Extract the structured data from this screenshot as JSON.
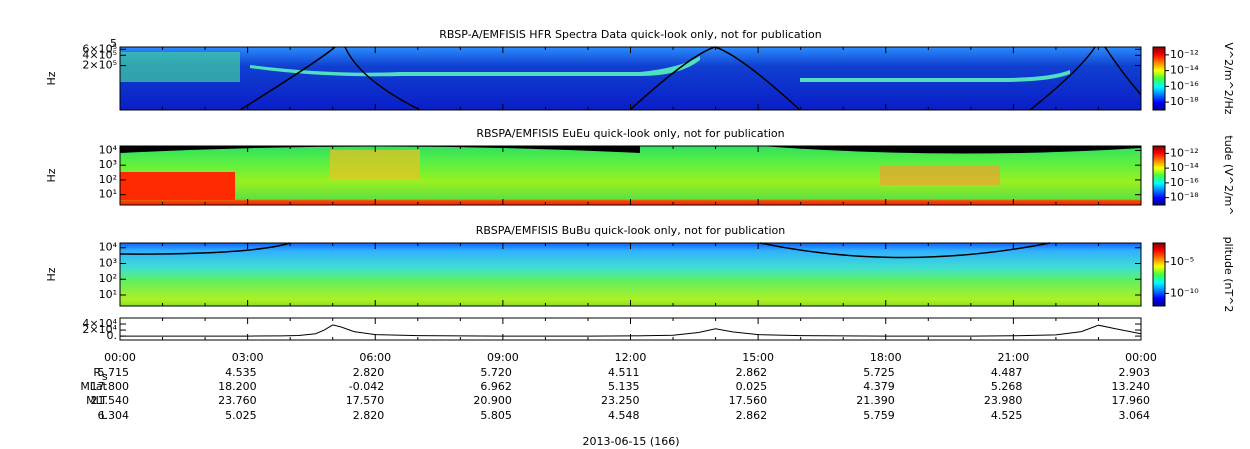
{
  "chart_data": [
    {
      "type": "spectrogram",
      "title": "RBSP-A/EMFISIS  HFR Spectra Data quick-look only, not for publication",
      "ylabel": "Hz",
      "log_y": true,
      "ylim": [
        10000,
        700000
      ],
      "yticks": [
        {
          "value": 200000,
          "label": "2×10⁵"
        },
        {
          "value": 400000,
          "label": "4×10⁵"
        },
        {
          "value": 600000,
          "label": "6×10⁵"
        }
      ],
      "annotation": "5",
      "colorbar": {
        "label": "V^2/m^2/Hz",
        "log": true,
        "lim": [
          1e-19,
          1e-11
        ],
        "ticks": [
          {
            "value": 1e-12,
            "label": "10⁻¹²"
          },
          {
            "value": 1e-14,
            "label": "10⁻¹⁴"
          },
          {
            "value": 1e-16,
            "label": "10⁻¹⁶"
          },
          {
            "value": 1e-18,
            "label": "10⁻¹⁸"
          }
        ]
      }
    },
    {
      "type": "spectrogram",
      "title": "RBSPA/EMFISIS  EuEu quick-look only, not for publication",
      "ylabel": "Hz",
      "log_y": true,
      "ylim": [
        2,
        20000
      ],
      "yticks": [
        {
          "value": 10,
          "label": "10¹"
        },
        {
          "value": 100,
          "label": "10²"
        },
        {
          "value": 1000,
          "label": "10³"
        },
        {
          "value": 10000,
          "label": "10⁴"
        }
      ],
      "colorbar": {
        "label": "tude (V^2/m^",
        "log": true,
        "lim": [
          1e-19,
          1e-11
        ],
        "ticks": [
          {
            "value": 1e-12,
            "label": "10⁻¹²"
          },
          {
            "value": 1e-14,
            "label": "10⁻¹⁴"
          },
          {
            "value": 1e-16,
            "label": "10⁻¹⁶"
          },
          {
            "value": 1e-18,
            "label": "10⁻¹⁸"
          }
        ]
      }
    },
    {
      "type": "spectrogram",
      "title": "RBSPA/EMFISIS  BuBu quick-look only, not for publication",
      "ylabel": "Hz",
      "log_y": true,
      "ylim": [
        2,
        20000
      ],
      "yticks": [
        {
          "value": 10,
          "label": "10¹"
        },
        {
          "value": 100,
          "label": "10²"
        },
        {
          "value": 1000,
          "label": "10³"
        },
        {
          "value": 10000,
          "label": "10⁴"
        }
      ],
      "colorbar": {
        "label": "plitude (nT^2",
        "log": true,
        "lim": [
          1e-12,
          0.01
        ],
        "ticks": [
          {
            "value": 1e-05,
            "label": "10⁻⁵"
          },
          {
            "value": 1e-10,
            "label": "10⁻¹⁰"
          }
        ]
      }
    },
    {
      "type": "line",
      "color": "#000000",
      "ylim": [
        -13000,
        60000
      ],
      "yticks": [
        {
          "value": 0,
          "label": "0."
        },
        {
          "value": 20000,
          "label": "2×10⁴"
        },
        {
          "value": 40000,
          "label": "4×10⁴"
        }
      ],
      "x": [
        0,
        1,
        2,
        3,
        3.8,
        4.2,
        4.6,
        4.8,
        5.0,
        5.2,
        5.5,
        6,
        7,
        8,
        9,
        11,
        12,
        13,
        13.6,
        14.0,
        14.4,
        15,
        16,
        17,
        18,
        20,
        21,
        22,
        22.6,
        23.0,
        23.4,
        24
      ],
      "values": [
        0,
        0,
        0,
        0,
        500,
        2000,
        8000,
        20000,
        37000,
        30000,
        15000,
        5000,
        1500,
        500,
        0,
        0,
        500,
        3000,
        12000,
        24000,
        14000,
        5000,
        1500,
        500,
        0,
        0,
        1000,
        4000,
        15000,
        36000,
        24000,
        8000
      ]
    }
  ],
  "time_axis": {
    "xlim": [
      0,
      24
    ],
    "xticks": [
      {
        "value": 0,
        "label": "00:00"
      },
      {
        "value": 3,
        "label": "03:00"
      },
      {
        "value": 6,
        "label": "06:00"
      },
      {
        "value": 9,
        "label": "09:00"
      },
      {
        "value": 12,
        "label": "12:00"
      },
      {
        "value": 15,
        "label": "15:00"
      },
      {
        "value": 18,
        "label": "18:00"
      },
      {
        "value": 21,
        "label": "21:00"
      },
      {
        "value": 24,
        "label": "00:00"
      }
    ],
    "date": "2013-06-15 (166)"
  },
  "ephemeris": [
    {
      "label": "R",
      "subscript": "s",
      "values": [
        "5.715",
        "4.535",
        "2.820",
        "5.720",
        "4.511",
        "2.862",
        "5.725",
        "4.487",
        "2.903"
      ]
    },
    {
      "label": "MLat",
      "values": [
        "17.800",
        "18.200",
        "-0.042",
        "6.962",
        "5.135",
        "0.025",
        "4.379",
        "5.268",
        "13.240"
      ]
    },
    {
      "label": "MLT",
      "values": [
        "21.540",
        "23.760",
        "17.570",
        "20.900",
        "23.250",
        "17.560",
        "21.390",
        "23.980",
        "17.960"
      ]
    },
    {
      "label": "L",
      "values": [
        "6.304",
        "5.025",
        "2.820",
        "5.805",
        "4.548",
        "2.862",
        "5.759",
        "4.525",
        "3.064"
      ]
    }
  ]
}
